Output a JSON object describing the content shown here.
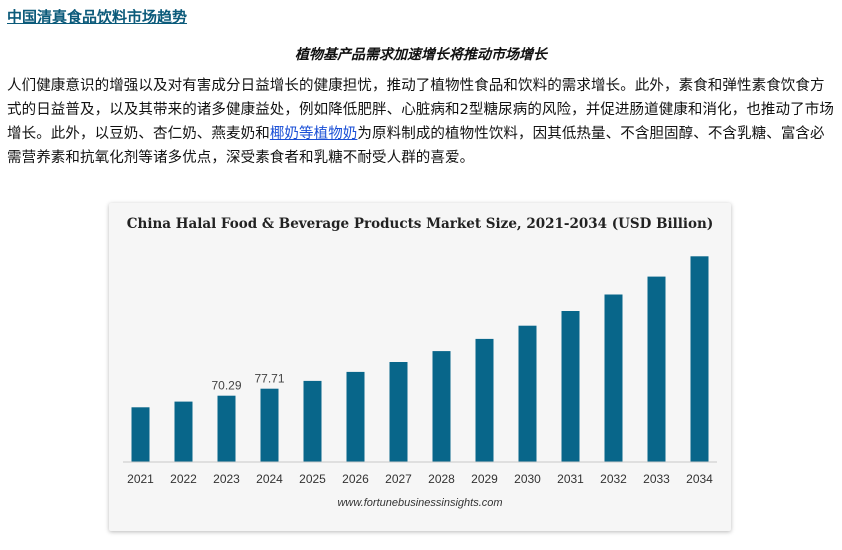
{
  "page": {
    "title": "中国清真食品饮料市场趋势",
    "subtitle": "植物基产品需求加速增长将推动市场增长",
    "paragraph_before_link": "人们健康意识的增强以及对有害成分日益增长的健康担忧，推动了植物性食品和饮料的需求增长。此外，素食和弹性素食饮食方式的日益普及，以及其带来的诸多健康益处，例如降低肥胖、心脏病和2型糖尿病的风险，并促进肠道健康和消化，也推动了市场增长。此外，以豆奶、杏仁奶、燕麦奶和",
    "link_text": "椰奶等植物奶",
    "paragraph_after_link": "为原料制成的植物性饮料，因其低热量、不含胆固醇、不含乳糖、富含必需营养素和抗氧化剂等诸多优点，深受素食者和乳糖不耐受人群的喜爱。"
  },
  "colors": {
    "bar": "#08668a",
    "title_link": "#0b5a7a",
    "body_link": "#1a4fd6"
  },
  "chart_data": {
    "type": "bar",
    "title": "China Halal Food & Beverage Products Market Size, 2021-2034 (USD Billion)",
    "categories": [
      "2021",
      "2022",
      "2023",
      "2024",
      "2025",
      "2026",
      "2027",
      "2028",
      "2029",
      "2030",
      "2031",
      "2032",
      "2033",
      "2034"
    ],
    "values": [
      58.0,
      64.0,
      70.29,
      77.71,
      86.0,
      95.5,
      106.0,
      117.5,
      130.5,
      144.5,
      160.0,
      177.5,
      196.5,
      218.0
    ],
    "data_labels": {
      "2023": "70.29",
      "2024": "77.71"
    },
    "xlabel": "",
    "ylabel": "",
    "ylim": [
      0,
      230
    ],
    "grid": false,
    "source": "www.fortunebusinessinsights.com"
  }
}
